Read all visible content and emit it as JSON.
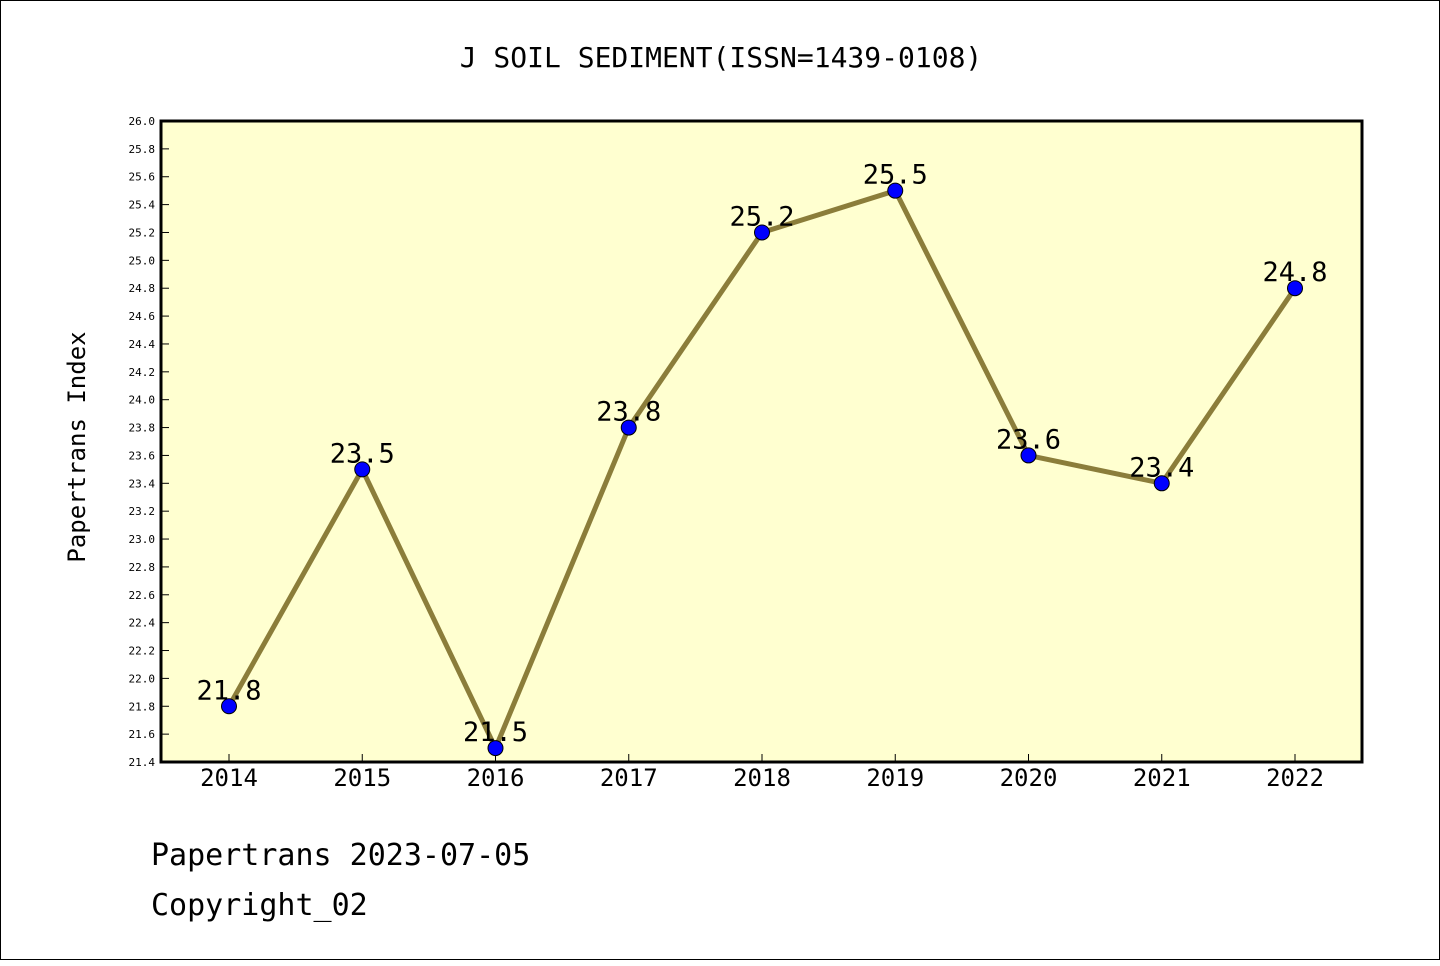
{
  "chart_data": {
    "type": "line",
    "title": "J SOIL SEDIMENT(ISSN=1439-0108)",
    "ylabel": "Papertrans Index",
    "xlabel": "",
    "categories": [
      "2014",
      "2015",
      "2016",
      "2017",
      "2018",
      "2019",
      "2020",
      "2021",
      "2022"
    ],
    "values": [
      21.8,
      23.5,
      21.5,
      23.8,
      25.2,
      25.5,
      23.6,
      23.4,
      24.8
    ],
    "data_labels": [
      "21.8",
      "23.5",
      "21.5",
      "23.8",
      "25.2",
      "25.5",
      "23.6",
      "23.4",
      "24.8"
    ],
    "ylim": [
      21.4,
      26.0
    ],
    "yticks": [
      "21.4",
      "21.6",
      "21.8",
      "22.0",
      "22.2",
      "22.4",
      "22.6",
      "22.8",
      "23.0",
      "23.2",
      "23.4",
      "23.6",
      "23.8",
      "24.0",
      "24.2",
      "24.4",
      "24.6",
      "24.8",
      "25.0",
      "25.2",
      "25.4",
      "25.6",
      "25.8",
      "26.0"
    ],
    "grid": false,
    "line_color": "#8b7d3a",
    "marker_color": "#0000ff",
    "plot_background": "#ffffd0"
  },
  "footer": {
    "line1": "Papertrans 2023-07-05",
    "line2": "Copyright_02"
  }
}
